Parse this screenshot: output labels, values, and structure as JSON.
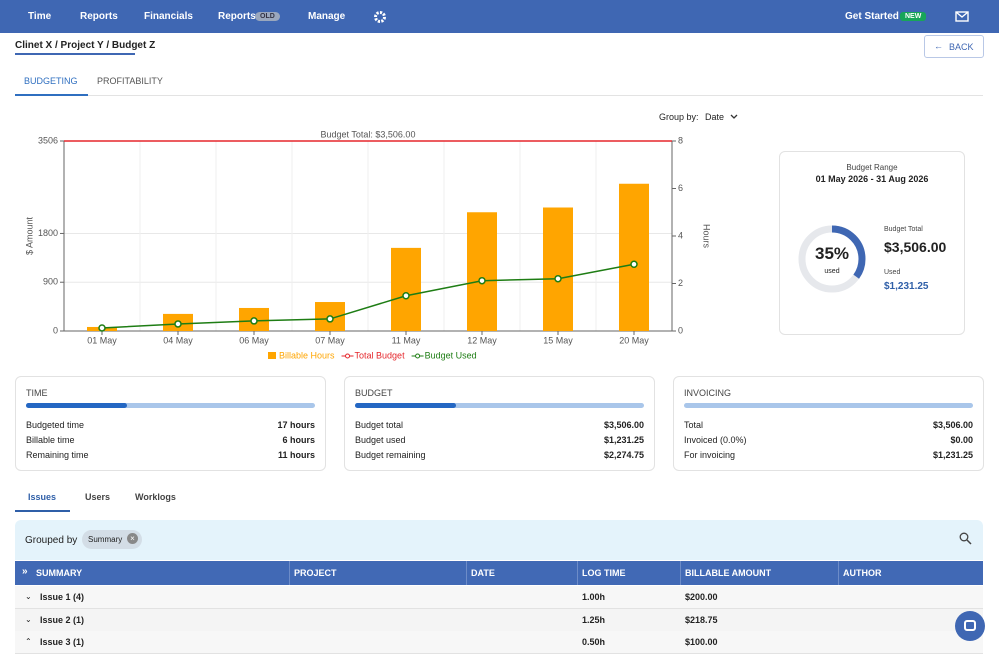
{
  "nav": {
    "items": [
      "Time",
      "Reports",
      "Financials",
      "Reports",
      "Manage"
    ],
    "old_badge": "OLD",
    "get_started": "Get Started",
    "new_badge": "NEW"
  },
  "breadcrumb": "Clinet X / Project Y / Budget Z",
  "back": "BACK",
  "tabs": [
    "BUDGETING",
    "PROFITABILITY"
  ],
  "group_by": {
    "label": "Group by:",
    "value": "Date"
  },
  "chart_data": {
    "type": "bar-line",
    "annotation": "Budget Total: $3,506.00",
    "ylabel": "$ Amount",
    "y2label": "Hours",
    "categories": [
      "01 May",
      "04 May",
      "06 May",
      "07 May",
      "11 May",
      "12 May",
      "15 May",
      "20 May"
    ],
    "ylim": [
      0,
      3506
    ],
    "yticks": [
      0,
      900,
      1800,
      3506
    ],
    "y2lim": [
      0,
      8
    ],
    "y2ticks": [
      0,
      2,
      4,
      6,
      8
    ],
    "grid": true,
    "series": [
      {
        "name": "Billable Hours",
        "color": "#ffa500",
        "kind": "bar",
        "axis": "y2",
        "values": [
          0.17,
          0.72,
          0.97,
          1.22,
          3.5,
          5.0,
          5.2,
          6.2
        ]
      },
      {
        "name": "Total Budget",
        "color": "#e5262b",
        "kind": "line",
        "values": [
          3506,
          3506,
          3506,
          3506,
          3506,
          3506,
          3506,
          3506
        ]
      },
      {
        "name": "Budget Used",
        "color": "#1e7d14",
        "kind": "line",
        "markers": true,
        "values": [
          56,
          130,
          186,
          223,
          650,
          928,
          965,
          1231.25
        ]
      }
    ]
  },
  "budget_card": {
    "range_label": "Budget Range",
    "range": "01 May 2026 - 31 Aug 2026",
    "percent": 35,
    "percent_label": "35%",
    "used_label": "used",
    "total_label": "Budget Total",
    "total": "$3,506.00",
    "used_title": "Used",
    "used": "$1,231.25"
  },
  "stat_cards": [
    {
      "title": "TIME",
      "progress": 35,
      "rows": [
        {
          "label": "Budgeted time",
          "value": "17 hours"
        },
        {
          "label": "Billable time",
          "value": "6 hours"
        },
        {
          "label": "Remaining time",
          "value": "11 hours"
        }
      ]
    },
    {
      "title": "BUDGET",
      "progress": 35,
      "rows": [
        {
          "label": "Budget total",
          "value": "$3,506.00"
        },
        {
          "label": "Budget used",
          "value": "$1,231.25"
        },
        {
          "label": "Budget remaining",
          "value": "$2,274.75"
        }
      ]
    },
    {
      "title": "INVOICING",
      "progress": 0,
      "rows": [
        {
          "label": "Total",
          "value": "$3,506.00"
        },
        {
          "label": "Invoiced (0.0%)",
          "value": "$0.00"
        },
        {
          "label": "For invoicing",
          "value": "$1,231.25"
        }
      ]
    }
  ],
  "lower_tabs": [
    "Issues",
    "Users",
    "Worklogs"
  ],
  "grouped": {
    "label": "Grouped by",
    "chip": "Summary"
  },
  "table": {
    "headers": [
      "SUMMARY",
      "PROJECT",
      "DATE",
      "LOG TIME",
      "BILLABLE AMOUNT",
      "AUTHOR"
    ],
    "rows": [
      {
        "summary": "Issue 1 (4)",
        "log_time": "1.00h",
        "billable_amount": "$200.00"
      },
      {
        "summary": "Issue 2 (1)",
        "log_time": "1.25h",
        "billable_amount": "$218.75"
      },
      {
        "summary": "Issue 3 (1)",
        "log_time": "0.50h",
        "billable_amount": "$100.00"
      }
    ]
  }
}
